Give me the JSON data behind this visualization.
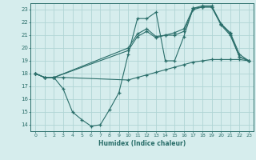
{
  "xlabel": "Humidex (Indice chaleur)",
  "xlim": [
    -0.5,
    23.5
  ],
  "ylim": [
    13.5,
    23.5
  ],
  "yticks": [
    14,
    15,
    16,
    17,
    18,
    19,
    20,
    21,
    22,
    23
  ],
  "xticks": [
    0,
    1,
    2,
    3,
    4,
    5,
    6,
    7,
    8,
    9,
    10,
    11,
    12,
    13,
    14,
    15,
    16,
    17,
    18,
    19,
    20,
    21,
    22,
    23
  ],
  "bg_color": "#d6eded",
  "grid_color": "#b0d4d4",
  "line_color": "#2a6e6a",
  "lines": [
    {
      "x": [
        0,
        1,
        2,
        3,
        4,
        5,
        6,
        7,
        8,
        9,
        10,
        11,
        12,
        13,
        14,
        15,
        16,
        17,
        18,
        19,
        20,
        21,
        22,
        23
      ],
      "y": [
        18,
        17.7,
        17.7,
        16.8,
        15.0,
        14.4,
        13.9,
        14.0,
        15.2,
        16.5,
        19.5,
        22.3,
        22.3,
        22.8,
        19.0,
        19.0,
        20.9,
        23.1,
        23.2,
        23.2,
        21.9,
        21.1,
        19.3,
        19.0
      ]
    },
    {
      "x": [
        0,
        1,
        2,
        10,
        11,
        12,
        13,
        14,
        15,
        16,
        17,
        18,
        19,
        20,
        21,
        22,
        23
      ],
      "y": [
        18,
        17.7,
        17.7,
        20.0,
        21.1,
        21.5,
        20.9,
        21.0,
        21.2,
        21.5,
        23.1,
        23.3,
        23.3,
        21.9,
        21.2,
        19.5,
        19.0
      ]
    },
    {
      "x": [
        0,
        1,
        2,
        10,
        11,
        12,
        13,
        14,
        15,
        16,
        17,
        18,
        19,
        20,
        21,
        22,
        23
      ],
      "y": [
        18,
        17.7,
        17.7,
        19.8,
        20.9,
        21.3,
        20.8,
        21.0,
        21.0,
        21.3,
        23.0,
        23.2,
        23.2,
        21.8,
        21.0,
        19.3,
        19.0
      ]
    },
    {
      "x": [
        0,
        1,
        2,
        3,
        10,
        11,
        12,
        13,
        14,
        15,
        16,
        17,
        18,
        19,
        20,
        21,
        22,
        23
      ],
      "y": [
        18.0,
        17.7,
        17.7,
        17.7,
        17.5,
        17.7,
        17.9,
        18.1,
        18.3,
        18.5,
        18.7,
        18.9,
        19.0,
        19.1,
        19.1,
        19.1,
        19.1,
        19.0
      ]
    }
  ]
}
